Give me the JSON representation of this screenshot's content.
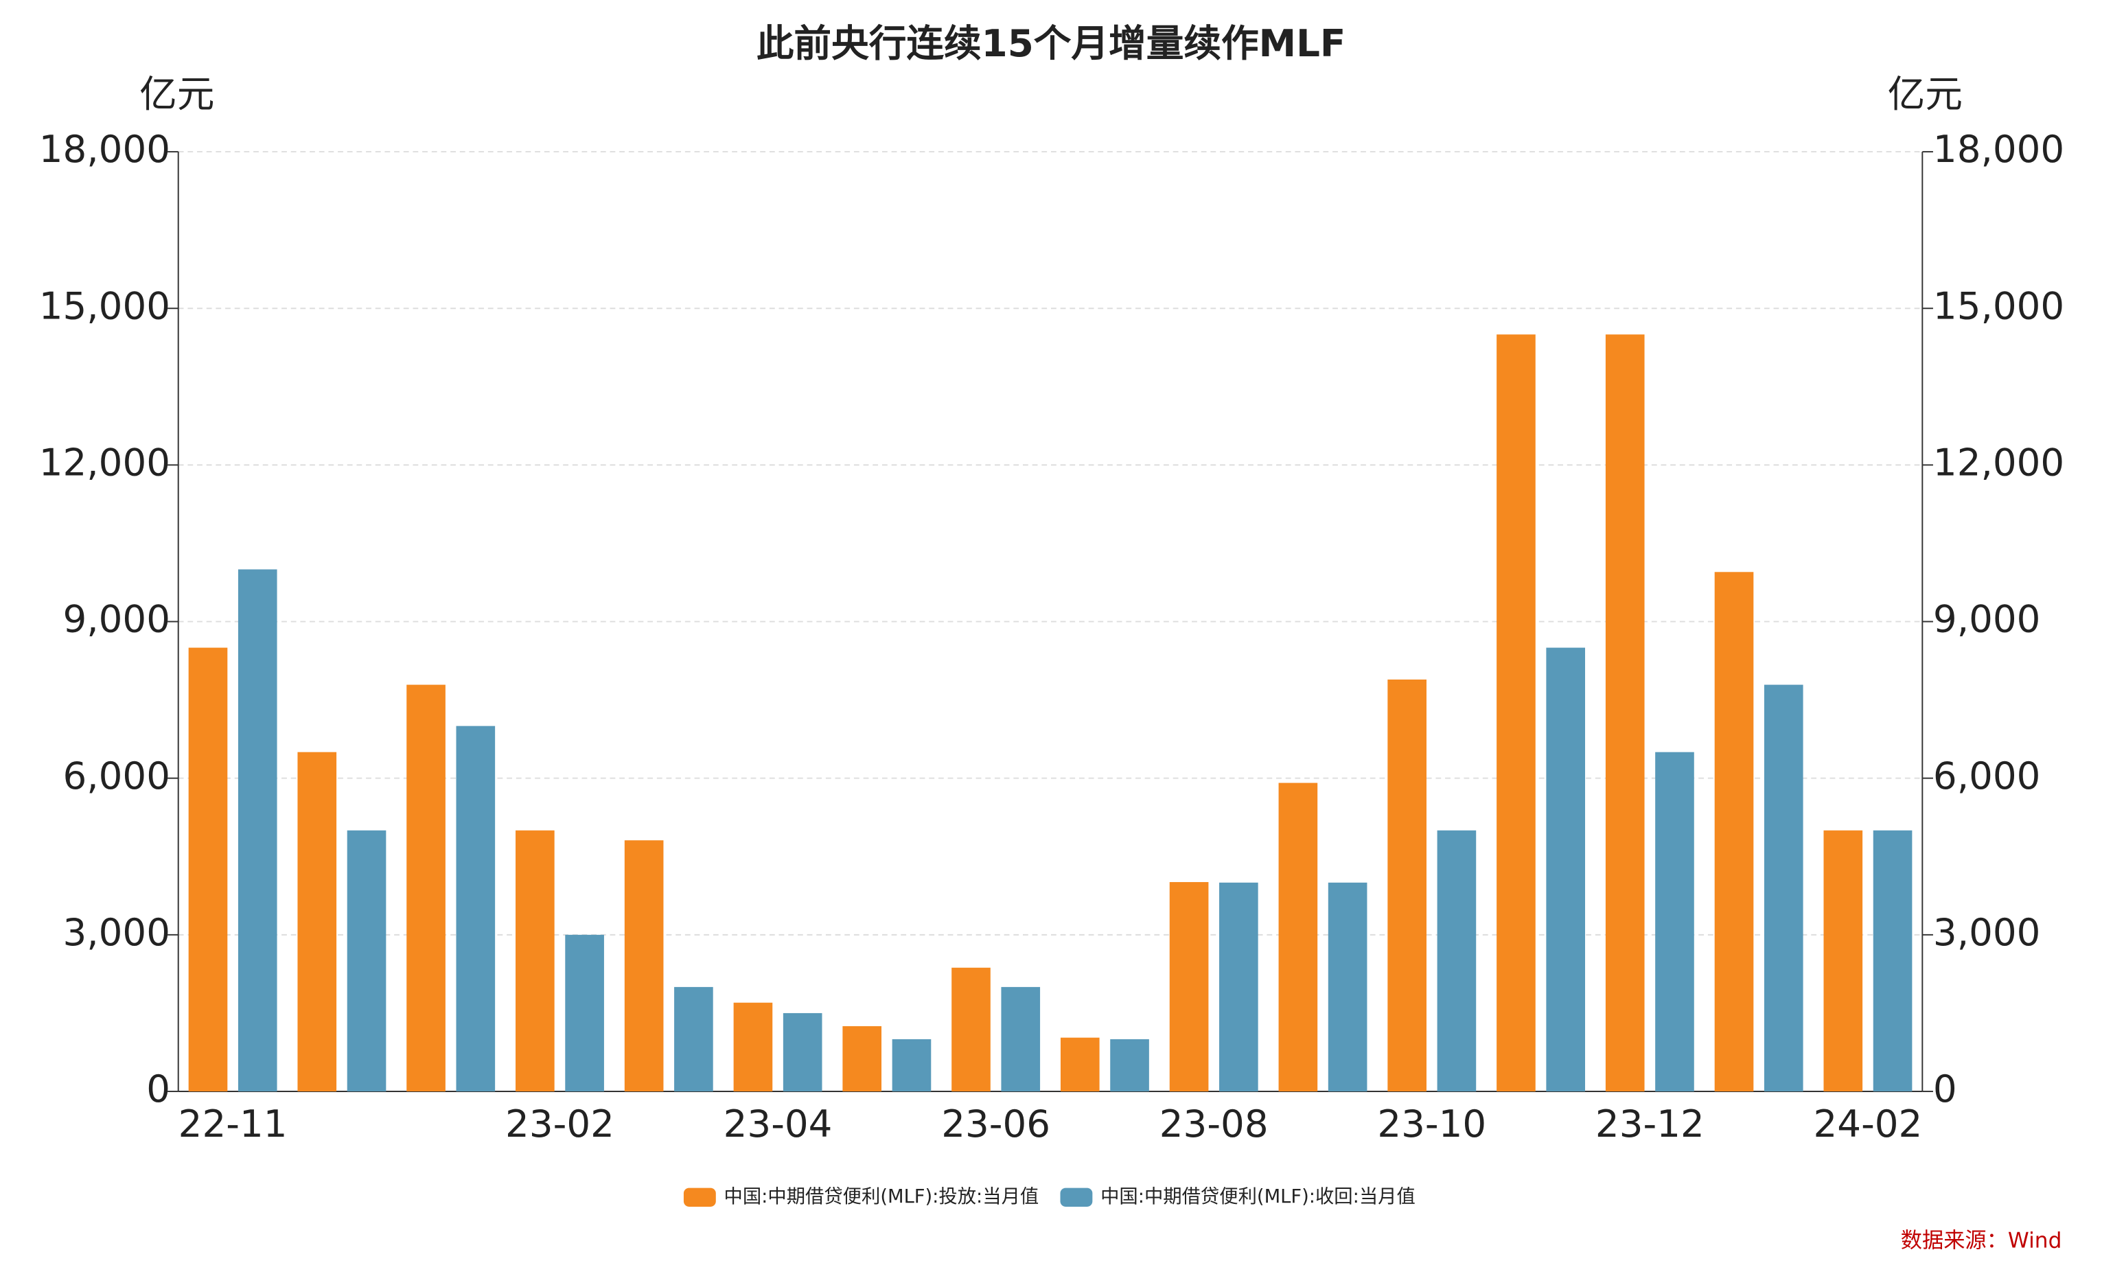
{
  "chart_data": {
    "type": "bar",
    "title": "此前央行连续15个月增量续作MLF",
    "y_unit": "亿元",
    "y2_unit": "亿元",
    "categories": [
      "22-11",
      null,
      null,
      "23-02",
      null,
      "23-04",
      null,
      "23-06",
      null,
      "23-08",
      null,
      "23-10",
      null,
      "23-12",
      null,
      "24-02"
    ],
    "series": [
      {
        "name": "中国:中期借贷便利(MLF):投放:当月值",
        "color": "#f5891f",
        "values": [
          8500,
          6500,
          7790,
          5000,
          4810,
          1700,
          1250,
          2370,
          1030,
          4010,
          5910,
          7890,
          14500,
          14500,
          9950,
          5000
        ]
      },
      {
        "name": "中国:中期借贷便利(MLF):收回:当月值",
        "color": "#5899b9",
        "values": [
          10000,
          5000,
          7000,
          3000,
          2000,
          1500,
          1000,
          2000,
          1000,
          4000,
          4000,
          5000,
          8500,
          6500,
          7790,
          5000
        ]
      }
    ],
    "ylim": [
      0,
      18000
    ],
    "yticks": [
      0,
      {
        "value": 3000,
        "label": "3,000"
      },
      {
        "value": 6000,
        "label": "6,000"
      },
      {
        "value": 9000,
        "label": "9,000"
      },
      {
        "value": 12000,
        "label": "12,000"
      },
      {
        "value": 15000,
        "label": "15,000"
      },
      {
        "value": 18000,
        "label": "18,000"
      }
    ],
    "y2lim": [
      0,
      18000
    ],
    "y2ticks": [
      0,
      {
        "value": 3000,
        "label": "3,000"
      },
      {
        "value": 6000,
        "label": "6,000"
      },
      {
        "value": 9000,
        "label": "9,000"
      },
      {
        "value": 12000,
        "label": "12,000"
      },
      {
        "value": 15000,
        "label": "15,000"
      },
      {
        "value": 18000,
        "label": "18,000"
      }
    ],
    "grid": true,
    "legend": "bottom",
    "source": "数据来源：Wind"
  }
}
